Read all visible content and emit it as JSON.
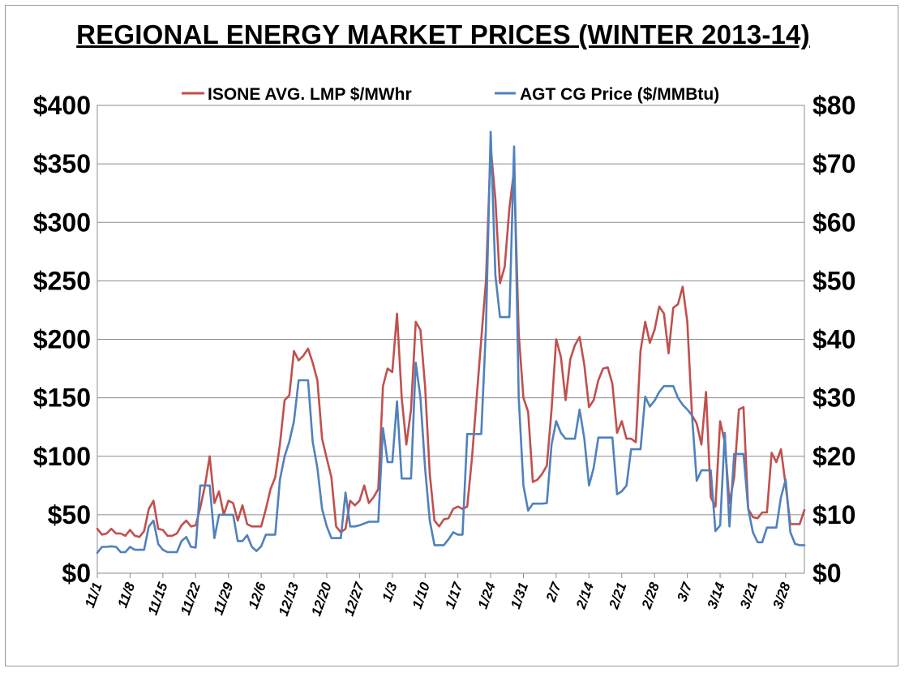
{
  "chart_data": {
    "type": "line",
    "title": "REGIONAL ENERGY MARKET PRICES (WINTER 2013-14)",
    "x_ticks": [
      "11/1",
      "11/8",
      "11/15",
      "11/22",
      "11/29",
      "12/6",
      "12/13",
      "12/20",
      "12/27",
      "1/3",
      "1/10",
      "1/17",
      "1/24",
      "1/31",
      "2/7",
      "2/14",
      "2/21",
      "2/28",
      "3/7",
      "3/14",
      "3/21",
      "3/28"
    ],
    "y_left": {
      "min": 0,
      "max": 400,
      "step": 50,
      "ticks": [
        "$0",
        "$50",
        "$100",
        "$150",
        "$200",
        "$250",
        "$300",
        "$350",
        "$400"
      ]
    },
    "y_right": {
      "min": 0,
      "max": 80,
      "step": 10,
      "ticks": [
        "$0",
        "$10",
        "$20",
        "$30",
        "$40",
        "$50",
        "$60",
        "$70",
        "$80"
      ]
    },
    "grid": true,
    "legend_position": "top",
    "colors": {
      "lmp": "#c0504d",
      "agt": "#4f81bd"
    },
    "series": [
      {
        "name": "ISONE AVG. LMP $/MWhr",
        "axis": "left",
        "day_offset_values": [
          [
            0,
            38
          ],
          [
            1,
            33
          ],
          [
            2,
            34
          ],
          [
            3,
            38
          ],
          [
            4,
            34
          ],
          [
            5,
            34
          ],
          [
            6,
            32
          ],
          [
            7,
            37
          ],
          [
            8,
            32
          ],
          [
            9,
            31
          ],
          [
            10,
            36
          ],
          [
            11,
            55
          ],
          [
            12,
            62
          ],
          [
            13,
            38
          ],
          [
            14,
            37
          ],
          [
            15,
            32
          ],
          [
            16,
            32
          ],
          [
            17,
            34
          ],
          [
            18,
            41
          ],
          [
            19,
            45
          ],
          [
            20,
            40
          ],
          [
            21,
            41
          ],
          [
            22,
            56
          ],
          [
            23,
            75
          ],
          [
            24,
            100
          ],
          [
            25,
            60
          ],
          [
            26,
            70
          ],
          [
            27,
            50
          ],
          [
            28,
            62
          ],
          [
            29,
            60
          ],
          [
            30,
            45
          ],
          [
            31,
            58
          ],
          [
            32,
            42
          ],
          [
            33,
            40
          ],
          [
            34,
            40
          ],
          [
            35,
            40
          ],
          [
            36,
            55
          ],
          [
            37,
            72
          ],
          [
            38,
            82
          ],
          [
            39,
            110
          ],
          [
            40,
            148
          ],
          [
            41,
            152
          ],
          [
            42,
            190
          ],
          [
            43,
            182
          ],
          [
            44,
            186
          ],
          [
            45,
            192
          ],
          [
            46,
            180
          ],
          [
            47,
            165
          ],
          [
            48,
            115
          ],
          [
            49,
            98
          ],
          [
            50,
            82
          ],
          [
            51,
            40
          ],
          [
            52,
            35
          ],
          [
            53,
            38
          ],
          [
            54,
            62
          ],
          [
            55,
            58
          ],
          [
            56,
            62
          ],
          [
            57,
            75
          ],
          [
            58,
            60
          ],
          [
            59,
            65
          ],
          [
            60,
            72
          ],
          [
            61,
            160
          ],
          [
            62,
            175
          ],
          [
            63,
            172
          ],
          [
            64,
            222
          ],
          [
            65,
            150
          ],
          [
            66,
            110
          ],
          [
            67,
            140
          ],
          [
            68,
            215
          ],
          [
            69,
            208
          ],
          [
            70,
            160
          ],
          [
            71,
            85
          ],
          [
            72,
            45
          ],
          [
            73,
            40
          ],
          [
            74,
            46
          ],
          [
            75,
            47
          ],
          [
            76,
            55
          ],
          [
            77,
            57
          ],
          [
            78,
            55
          ],
          [
            79,
            57
          ],
          [
            80,
            98
          ],
          [
            81,
            150
          ],
          [
            82,
            200
          ],
          [
            83,
            250
          ],
          [
            84,
            365
          ],
          [
            85,
            320
          ],
          [
            86,
            248
          ],
          [
            87,
            262
          ],
          [
            88,
            312
          ],
          [
            89,
            345
          ],
          [
            90,
            205
          ],
          [
            91,
            150
          ],
          [
            92,
            138
          ],
          [
            93,
            78
          ],
          [
            94,
            80
          ],
          [
            95,
            85
          ],
          [
            96,
            92
          ],
          [
            97,
            140
          ],
          [
            98,
            200
          ],
          [
            99,
            185
          ],
          [
            100,
            148
          ],
          [
            101,
            183
          ],
          [
            102,
            195
          ],
          [
            103,
            202
          ],
          [
            104,
            178
          ],
          [
            105,
            142
          ],
          [
            106,
            148
          ],
          [
            107,
            165
          ],
          [
            108,
            175
          ],
          [
            109,
            176
          ],
          [
            110,
            162
          ],
          [
            111,
            120
          ],
          [
            112,
            130
          ],
          [
            113,
            115
          ],
          [
            114,
            115
          ],
          [
            115,
            112
          ],
          [
            116,
            190
          ],
          [
            117,
            215
          ],
          [
            118,
            197
          ],
          [
            119,
            208
          ],
          [
            120,
            228
          ],
          [
            121,
            222
          ],
          [
            122,
            188
          ],
          [
            123,
            227
          ],
          [
            124,
            230
          ],
          [
            125,
            245
          ],
          [
            126,
            215
          ],
          [
            127,
            135
          ],
          [
            128,
            128
          ],
          [
            129,
            110
          ],
          [
            130,
            155
          ],
          [
            131,
            65
          ],
          [
            132,
            57
          ],
          [
            133,
            130
          ],
          [
            134,
            112
          ],
          [
            135,
            60
          ],
          [
            136,
            82
          ],
          [
            137,
            140
          ],
          [
            138,
            142
          ],
          [
            139,
            55
          ],
          [
            140,
            48
          ],
          [
            141,
            47
          ],
          [
            142,
            52
          ],
          [
            143,
            52
          ],
          [
            144,
            103
          ],
          [
            145,
            95
          ],
          [
            146,
            106
          ],
          [
            147,
            75
          ],
          [
            148,
            42
          ],
          [
            149,
            42
          ],
          [
            150,
            42
          ],
          [
            151,
            54
          ]
        ]
      },
      {
        "name": "AGT CG Price ($/MMBtu)",
        "axis": "right",
        "day_offset_values": [
          [
            0,
            3.5
          ],
          [
            1,
            4.5
          ],
          [
            2,
            4.5
          ],
          [
            3,
            4.6
          ],
          [
            4,
            4.5
          ],
          [
            5,
            3.6
          ],
          [
            6,
            3.6
          ],
          [
            7,
            4.5
          ],
          [
            8,
            4.0
          ],
          [
            9,
            4.0
          ],
          [
            10,
            4.0
          ],
          [
            11,
            8.0
          ],
          [
            12,
            9.0
          ],
          [
            13,
            5.0
          ],
          [
            14,
            4.0
          ],
          [
            15,
            3.6
          ],
          [
            16,
            3.6
          ],
          [
            17,
            3.6
          ],
          [
            18,
            5.5
          ],
          [
            19,
            6.2
          ],
          [
            20,
            4.5
          ],
          [
            21,
            4.4
          ],
          [
            22,
            15.0
          ],
          [
            23,
            15.0
          ],
          [
            24,
            15.0
          ],
          [
            25,
            6.0
          ],
          [
            26,
            10.0
          ],
          [
            27,
            10.0
          ],
          [
            28,
            10.0
          ],
          [
            29,
            10.0
          ],
          [
            30,
            5.5
          ],
          [
            31,
            5.5
          ],
          [
            32,
            6.5
          ],
          [
            33,
            4.5
          ],
          [
            34,
            3.8
          ],
          [
            35,
            4.6
          ],
          [
            36,
            6.6
          ],
          [
            37,
            6.6
          ],
          [
            38,
            6.6
          ],
          [
            39,
            16.0
          ],
          [
            40,
            20.0
          ],
          [
            41,
            22.5
          ],
          [
            42,
            26.0
          ],
          [
            43,
            33.0
          ],
          [
            44,
            33.0
          ],
          [
            45,
            33.0
          ],
          [
            46,
            22.5
          ],
          [
            47,
            18.0
          ],
          [
            48,
            11.0
          ],
          [
            49,
            8.0
          ],
          [
            50,
            6.0
          ],
          [
            51,
            6.0
          ],
          [
            52,
            6.0
          ],
          [
            53,
            13.8
          ],
          [
            54,
            8.0
          ],
          [
            55,
            8.0
          ],
          [
            56,
            8.2
          ],
          [
            57,
            8.5
          ],
          [
            58,
            8.8
          ],
          [
            59,
            8.8
          ],
          [
            60,
            8.8
          ],
          [
            61,
            24.8
          ],
          [
            62,
            19.0
          ],
          [
            63,
            19.0
          ],
          [
            64,
            29.4
          ],
          [
            65,
            16.2
          ],
          [
            66,
            16.2
          ],
          [
            67,
            16.2
          ],
          [
            68,
            36.0
          ],
          [
            69,
            30.0
          ],
          [
            70,
            18.0
          ],
          [
            71,
            9.0
          ],
          [
            72,
            4.8
          ],
          [
            73,
            4.8
          ],
          [
            74,
            4.8
          ],
          [
            75,
            5.8
          ],
          [
            76,
            7.0
          ],
          [
            77,
            6.6
          ],
          [
            78,
            6.6
          ],
          [
            79,
            23.8
          ],
          [
            80,
            23.8
          ],
          [
            81,
            23.8
          ],
          [
            82,
            23.8
          ],
          [
            83,
            42.0
          ],
          [
            84,
            75.5
          ],
          [
            85,
            51.0
          ],
          [
            86,
            43.8
          ],
          [
            87,
            43.8
          ],
          [
            88,
            43.8
          ],
          [
            89,
            73.0
          ],
          [
            90,
            30.0
          ],
          [
            91,
            15.0
          ],
          [
            92,
            10.7
          ],
          [
            93,
            11.9
          ],
          [
            94,
            11.9
          ],
          [
            95,
            11.9
          ],
          [
            96,
            12.0
          ],
          [
            97,
            22.0
          ],
          [
            98,
            26.0
          ],
          [
            99,
            24.0
          ],
          [
            100,
            23.0
          ],
          [
            101,
            23.0
          ],
          [
            102,
            23.0
          ],
          [
            103,
            28.0
          ],
          [
            104,
            23.0
          ],
          [
            105,
            15.0
          ],
          [
            106,
            18.0
          ],
          [
            107,
            23.2
          ],
          [
            108,
            23.2
          ],
          [
            109,
            23.2
          ],
          [
            110,
            23.2
          ],
          [
            111,
            13.5
          ],
          [
            112,
            14.0
          ],
          [
            113,
            15.0
          ],
          [
            114,
            21.2
          ],
          [
            115,
            21.2
          ],
          [
            116,
            21.2
          ],
          [
            117,
            30.2
          ],
          [
            118,
            28.5
          ],
          [
            119,
            29.5
          ],
          [
            120,
            31.0
          ],
          [
            121,
            32.0
          ],
          [
            122,
            32.0
          ],
          [
            123,
            32.0
          ],
          [
            124,
            30.0
          ],
          [
            125,
            28.8
          ],
          [
            126,
            28.0
          ],
          [
            127,
            27.0
          ],
          [
            128,
            15.8
          ],
          [
            129,
            17.6
          ],
          [
            130,
            17.6
          ],
          [
            131,
            17.6
          ],
          [
            132,
            7.2
          ],
          [
            133,
            8.2
          ],
          [
            134,
            24.0
          ],
          [
            135,
            8.0
          ],
          [
            136,
            20.4
          ],
          [
            137,
            20.4
          ],
          [
            138,
            20.4
          ],
          [
            139,
            11.0
          ],
          [
            140,
            7.0
          ],
          [
            141,
            5.3
          ],
          [
            142,
            5.3
          ],
          [
            143,
            7.8
          ],
          [
            144,
            7.8
          ],
          [
            145,
            7.8
          ],
          [
            146,
            13.0
          ],
          [
            147,
            16.0
          ],
          [
            148,
            7.0
          ],
          [
            149,
            5.0
          ],
          [
            150,
            4.8
          ],
          [
            151,
            4.8
          ]
        ]
      }
    ]
  }
}
